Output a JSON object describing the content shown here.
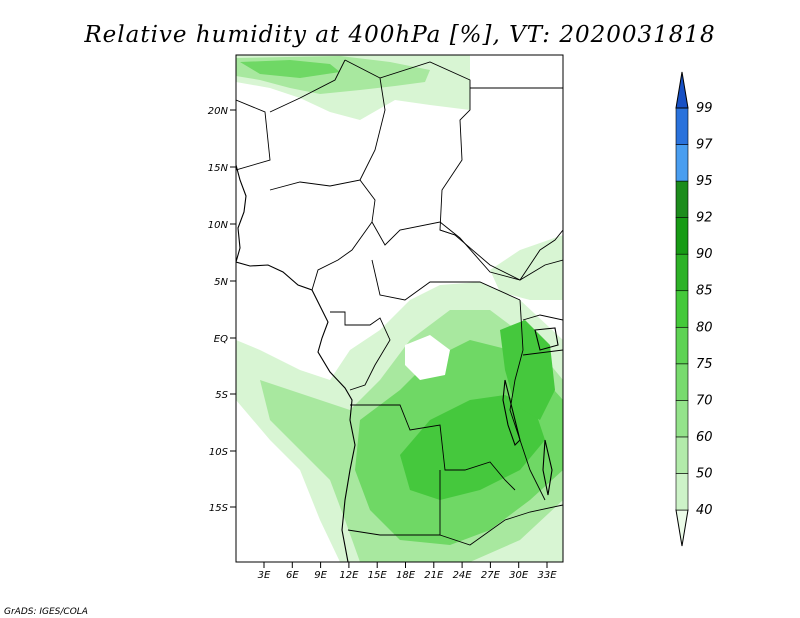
{
  "title": "Relative humidity at 400hPa [%], VT: 2020031818",
  "credit": "GrADS: IGES/COLA",
  "map": {
    "lat_labels": [
      "20N",
      "15N",
      "10N",
      "5N",
      "EQ",
      "5S",
      "10S",
      "15S"
    ],
    "lon_labels": [
      "3E",
      "6E",
      "9E",
      "12E",
      "15E",
      "18E",
      "21E",
      "24E",
      "27E",
      "30E",
      "33E"
    ]
  },
  "colorbar": {
    "labels": [
      "40",
      "50",
      "60",
      "70",
      "75",
      "80",
      "85",
      "90",
      "92",
      "95",
      "97",
      "99"
    ],
    "colors": [
      "#ebfbe8",
      "#cdf3c8",
      "#b2ebaa",
      "#94e38b",
      "#78db6e",
      "#5ed354",
      "#44c93a",
      "#2db227",
      "#179b15",
      "#1c8c1c",
      "#4a9ef0",
      "#2a72dc",
      "#1750c4"
    ]
  },
  "humidity_colors": {
    "light": "#d8f5d3",
    "mid": "#a8e89f",
    "strong": "#6fd865",
    "deep": "#45c83d"
  }
}
